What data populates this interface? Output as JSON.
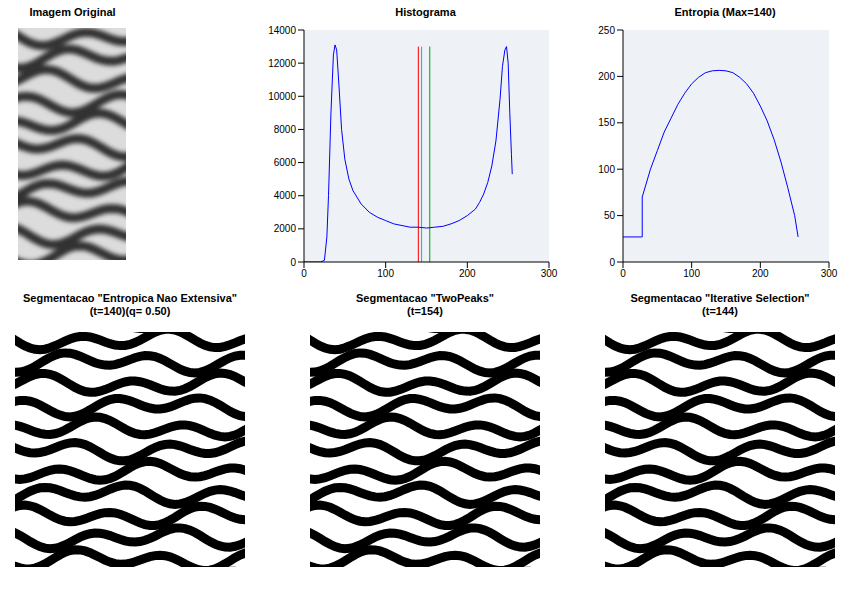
{
  "chart_data": [
    {
      "type": "line",
      "title": "Histograma",
      "x": [
        0,
        10,
        20,
        25,
        28,
        30,
        33,
        36,
        38,
        40,
        43,
        46,
        50,
        55,
        60,
        70,
        80,
        90,
        100,
        110,
        120,
        130,
        140,
        150,
        160,
        170,
        180,
        190,
        200,
        210,
        215,
        220,
        225,
        230,
        235,
        240,
        243,
        246,
        248,
        250,
        252,
        254,
        255
      ],
      "values": [
        0,
        0,
        0,
        100,
        1500,
        4000,
        9000,
        12500,
        13100,
        12800,
        10500,
        8000,
        6200,
        5000,
        4300,
        3500,
        3000,
        2700,
        2500,
        2300,
        2200,
        2100,
        2100,
        2050,
        2100,
        2150,
        2300,
        2500,
        2800,
        3200,
        3600,
        4100,
        4800,
        5800,
        7300,
        9800,
        11800,
        12800,
        13000,
        12000,
        9000,
        6500,
        5300
      ],
      "color": "#0000ff",
      "xlim": [
        0,
        300
      ],
      "xticks": [
        0,
        100,
        200,
        300
      ],
      "ylim": [
        0,
        14000
      ],
      "yticks": [
        0,
        2000,
        4000,
        6000,
        8000,
        10000,
        12000,
        14000
      ],
      "grid": false,
      "thresholds": {
        "x": [
          140,
          144,
          154
        ],
        "colors": [
          "#ff0000",
          "#00c0c0",
          "#00a000"
        ],
        "top": 13000
      }
    },
    {
      "type": "line",
      "title": "Entropia (Max=140)",
      "x": [
        0,
        27,
        28,
        28,
        40,
        50,
        60,
        70,
        80,
        90,
        100,
        110,
        120,
        130,
        140,
        150,
        160,
        170,
        180,
        190,
        200,
        210,
        220,
        230,
        240,
        250,
        255
      ],
      "values": [
        27,
        27,
        27,
        70,
        100,
        120,
        140,
        155,
        170,
        182,
        192,
        199,
        204,
        206,
        206.5,
        206,
        204,
        199,
        192,
        182,
        168,
        152,
        132,
        108,
        80,
        50,
        27
      ],
      "color": "#0000ff",
      "xlim": [
        0,
        300
      ],
      "xticks": [
        0,
        100,
        200,
        300
      ],
      "ylim": [
        0,
        250
      ],
      "yticks": [
        0,
        50,
        100,
        150,
        200,
        250
      ],
      "grid": false
    }
  ],
  "images": [
    {
      "title": "Imagem Original"
    },
    {
      "title": "Segmentacao \"Entropica Nao Extensiva\"",
      "subtitle": "(t=140)(q= 0.50)"
    },
    {
      "title": "Segmentacao \"TwoPeaks\"",
      "subtitle": "(t=154)"
    },
    {
      "title": "Segmentacao \"Iterative Selection\"",
      "subtitle": "(t=144)"
    }
  ]
}
